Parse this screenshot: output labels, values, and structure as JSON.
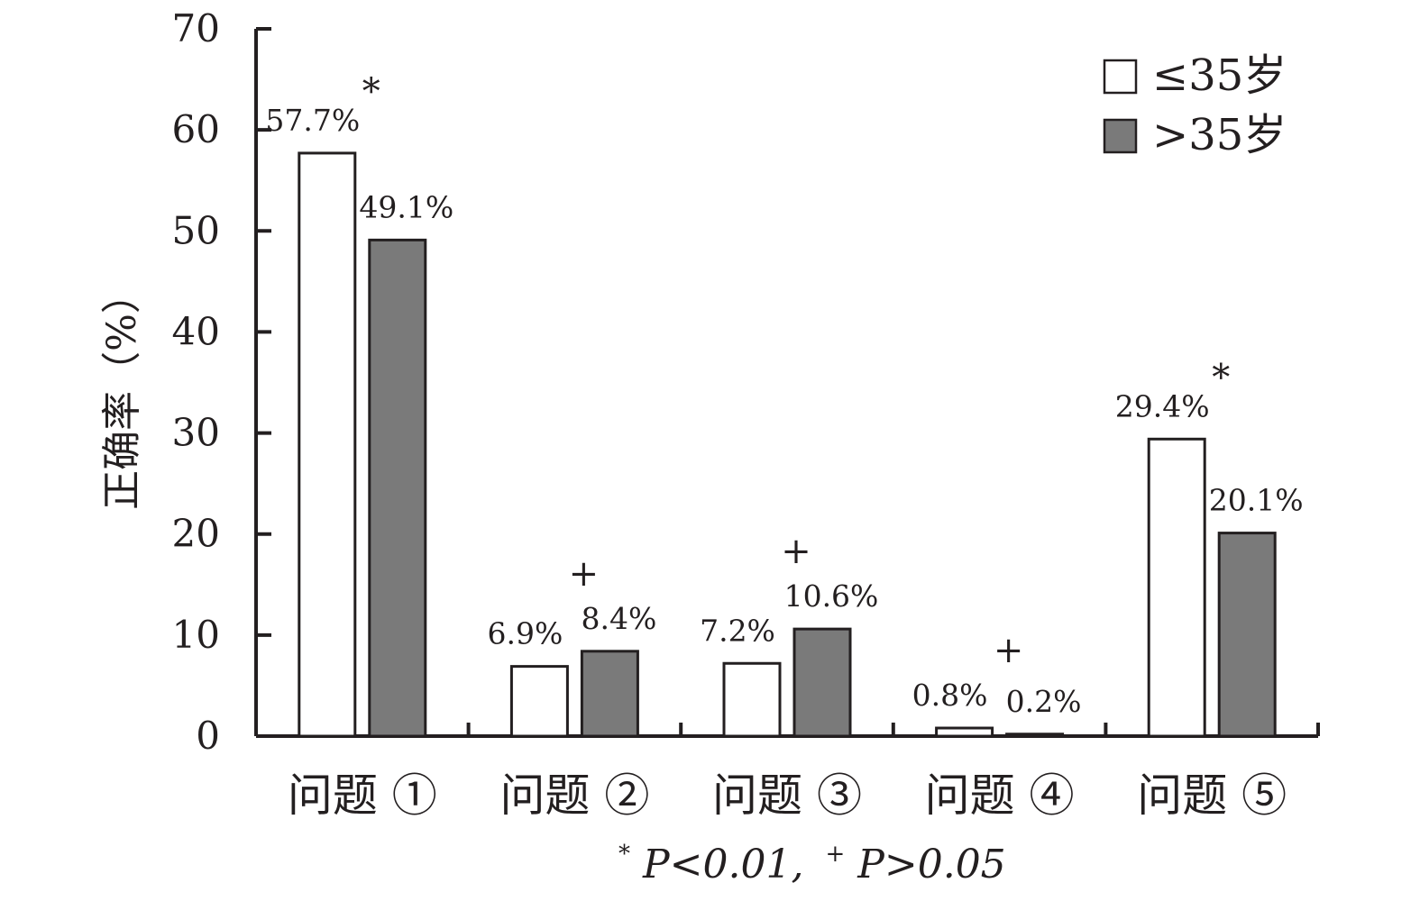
{
  "chart_data": {
    "type": "bar",
    "ylabel": "正确率（%）",
    "ylim": [
      0,
      70
    ],
    "yticks": [
      "0",
      "10",
      "20",
      "30",
      "40",
      "50",
      "60",
      "70"
    ],
    "categories": [
      "问题 ①",
      "问题 ②",
      "问题 ③",
      "问题 ④",
      "问题 ⑤"
    ],
    "series": [
      {
        "name": "≤35岁",
        "color": "#ffffff",
        "values": [
          57.7,
          6.9,
          7.2,
          0.8,
          29.4
        ],
        "labels": [
          "57.7%",
          "6.9%",
          "7.2%",
          "0.8%",
          "29.4%"
        ]
      },
      {
        "name": ">35岁",
        "color": "#7a7a7a",
        "values": [
          49.1,
          8.4,
          10.6,
          0.2,
          20.1
        ],
        "labels": [
          "49.1%",
          "8.4%",
          "10.6%",
          "0.2%",
          "20.1%"
        ]
      }
    ],
    "significance": [
      "*",
      "+",
      "+",
      "+",
      "*"
    ],
    "footnote": {
      "sig_symbol": "*",
      "sig_text": "P<0.01,",
      "ns_symbol": "+",
      "ns_text": "P>0.05"
    },
    "legend_position": "top-right",
    "grid": false
  }
}
